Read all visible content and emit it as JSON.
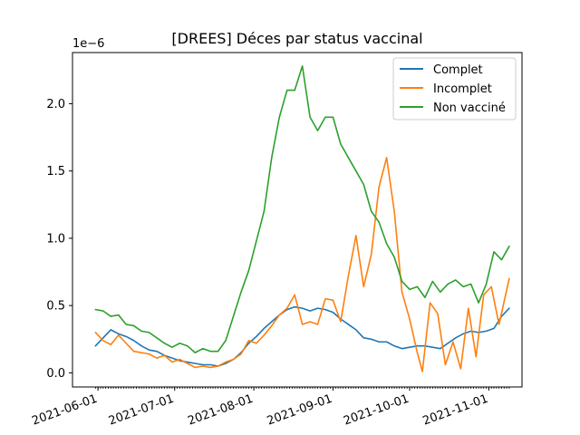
{
  "chart_data": {
    "type": "line",
    "title": "[DREES] Déces par status vaccinal",
    "xlabel": "",
    "ylabel": "",
    "y_offset_label": "1e−6",
    "ylim": [
      -1.05e-07,
      2.38e-06
    ],
    "xlim": [
      "2021-05-22",
      "2021-11-14"
    ],
    "yticks": [
      0.0,
      5e-07,
      1e-06,
      1.5e-06,
      2e-06
    ],
    "ytick_labels": [
      "0.0",
      "0.5",
      "1.0",
      "1.5",
      "2.0"
    ],
    "xticks": [
      "2021-06-01",
      "2021-07-01",
      "2021-08-01",
      "2021-09-01",
      "2021-10-01",
      "2021-11-01"
    ],
    "xtick_labels": [
      "2021-06-01",
      "2021-07-01",
      "2021-08-01",
      "2021-09-01",
      "2021-10-01",
      "2021-11-01"
    ],
    "grid": false,
    "legend_position": "top-right",
    "series": [
      {
        "name": "Complet",
        "color": "#1f77b4",
        "points": [
          [
            "2021-05-31",
            2e-07
          ],
          [
            "2021-06-03",
            2.6e-07
          ],
          [
            "2021-06-06",
            3.2e-07
          ],
          [
            "2021-06-09",
            2.9e-07
          ],
          [
            "2021-06-12",
            2.7e-07
          ],
          [
            "2021-06-15",
            2.4e-07
          ],
          [
            "2021-06-18",
            2e-07
          ],
          [
            "2021-06-21",
            1.7e-07
          ],
          [
            "2021-06-24",
            1.6e-07
          ],
          [
            "2021-06-27",
            1.3e-07
          ],
          [
            "2021-06-30",
            1.1e-07
          ],
          [
            "2021-07-03",
            9e-08
          ],
          [
            "2021-07-06",
            8e-08
          ],
          [
            "2021-07-09",
            7e-08
          ],
          [
            "2021-07-12",
            6e-08
          ],
          [
            "2021-07-15",
            6e-08
          ],
          [
            "2021-07-18",
            5e-08
          ],
          [
            "2021-07-21",
            7e-08
          ],
          [
            "2021-07-24",
            1e-07
          ],
          [
            "2021-07-27",
            1.5e-07
          ],
          [
            "2021-07-30",
            2.2e-07
          ],
          [
            "2021-08-02",
            2.7e-07
          ],
          [
            "2021-08-05",
            3.3e-07
          ],
          [
            "2021-08-08",
            3.8e-07
          ],
          [
            "2021-08-11",
            4.3e-07
          ],
          [
            "2021-08-14",
            4.7e-07
          ],
          [
            "2021-08-17",
            4.9e-07
          ],
          [
            "2021-08-20",
            4.8e-07
          ],
          [
            "2021-08-23",
            4.6e-07
          ],
          [
            "2021-08-26",
            4.8e-07
          ],
          [
            "2021-08-29",
            4.7e-07
          ],
          [
            "2021-09-01",
            4.5e-07
          ],
          [
            "2021-09-04",
            4e-07
          ],
          [
            "2021-09-07",
            3.6e-07
          ],
          [
            "2021-09-10",
            3.2e-07
          ],
          [
            "2021-09-13",
            2.6e-07
          ],
          [
            "2021-09-16",
            2.5e-07
          ],
          [
            "2021-09-19",
            2.3e-07
          ],
          [
            "2021-09-22",
            2.3e-07
          ],
          [
            "2021-09-25",
            2e-07
          ],
          [
            "2021-09-28",
            1.8e-07
          ],
          [
            "2021-10-01",
            1.9e-07
          ],
          [
            "2021-10-04",
            2e-07
          ],
          [
            "2021-10-07",
            2e-07
          ],
          [
            "2021-10-10",
            1.9e-07
          ],
          [
            "2021-10-13",
            1.8e-07
          ],
          [
            "2021-10-16",
            2.2e-07
          ],
          [
            "2021-10-19",
            2.6e-07
          ],
          [
            "2021-10-22",
            2.9e-07
          ],
          [
            "2021-10-25",
            3.1e-07
          ],
          [
            "2021-10-28",
            3e-07
          ],
          [
            "2021-10-31",
            3.1e-07
          ],
          [
            "2021-11-03",
            3.3e-07
          ],
          [
            "2021-11-06",
            4.2e-07
          ],
          [
            "2021-11-09",
            4.8e-07
          ]
        ]
      },
      {
        "name": "Incomplet",
        "color": "#ff7f0e",
        "points": [
          [
            "2021-05-31",
            3e-07
          ],
          [
            "2021-06-03",
            2.4e-07
          ],
          [
            "2021-06-06",
            2.1e-07
          ],
          [
            "2021-06-09",
            2.8e-07
          ],
          [
            "2021-06-12",
            2.2e-07
          ],
          [
            "2021-06-15",
            1.6e-07
          ],
          [
            "2021-06-18",
            1.5e-07
          ],
          [
            "2021-06-21",
            1.4e-07
          ],
          [
            "2021-06-24",
            1.1e-07
          ],
          [
            "2021-06-27",
            1.3e-07
          ],
          [
            "2021-06-30",
            8e-08
          ],
          [
            "2021-07-03",
            1e-07
          ],
          [
            "2021-07-06",
            7e-08
          ],
          [
            "2021-07-09",
            4e-08
          ],
          [
            "2021-07-12",
            5e-08
          ],
          [
            "2021-07-15",
            4e-08
          ],
          [
            "2021-07-18",
            5e-08
          ],
          [
            "2021-07-21",
            8e-08
          ],
          [
            "2021-07-24",
            1e-07
          ],
          [
            "2021-07-27",
            1.4e-07
          ],
          [
            "2021-07-30",
            2.4e-07
          ],
          [
            "2021-08-02",
            2.2e-07
          ],
          [
            "2021-08-05",
            2.8e-07
          ],
          [
            "2021-08-08",
            3.5e-07
          ],
          [
            "2021-08-11",
            4.3e-07
          ],
          [
            "2021-08-14",
            4.8e-07
          ],
          [
            "2021-08-17",
            5.8e-07
          ],
          [
            "2021-08-20",
            3.6e-07
          ],
          [
            "2021-08-23",
            3.8e-07
          ],
          [
            "2021-08-26",
            3.6e-07
          ],
          [
            "2021-08-29",
            5.5e-07
          ],
          [
            "2021-09-01",
            5.4e-07
          ],
          [
            "2021-09-04",
            3.8e-07
          ],
          [
            "2021-09-07",
            7.2e-07
          ],
          [
            "2021-09-10",
            1.02e-06
          ],
          [
            "2021-09-13",
            6.4e-07
          ],
          [
            "2021-09-16",
            8.8e-07
          ],
          [
            "2021-09-19",
            1.38e-06
          ],
          [
            "2021-09-22",
            1.6e-06
          ],
          [
            "2021-09-25",
            1.2e-06
          ],
          [
            "2021-09-28",
            6e-07
          ],
          [
            "2021-10-01",
            4e-07
          ],
          [
            "2021-10-04",
            1.5e-07
          ],
          [
            "2021-10-06",
            1e-08
          ],
          [
            "2021-10-09",
            5.2e-07
          ],
          [
            "2021-10-12",
            4.4e-07
          ],
          [
            "2021-10-15",
            6e-08
          ],
          [
            "2021-10-18",
            2.3e-07
          ],
          [
            "2021-10-21",
            3e-08
          ],
          [
            "2021-10-24",
            4.8e-07
          ],
          [
            "2021-10-27",
            1.2e-07
          ],
          [
            "2021-10-30",
            5.8e-07
          ],
          [
            "2021-11-02",
            6.4e-07
          ],
          [
            "2021-11-05",
            3.6e-07
          ],
          [
            "2021-11-09",
            7e-07
          ]
        ]
      },
      {
        "name": "Non vacciné",
        "color": "#2ca02c",
        "points": [
          [
            "2021-05-31",
            4.7e-07
          ],
          [
            "2021-06-03",
            4.6e-07
          ],
          [
            "2021-06-06",
            4.2e-07
          ],
          [
            "2021-06-09",
            4.3e-07
          ],
          [
            "2021-06-12",
            3.6e-07
          ],
          [
            "2021-06-15",
            3.5e-07
          ],
          [
            "2021-06-18",
            3.1e-07
          ],
          [
            "2021-06-21",
            3e-07
          ],
          [
            "2021-06-24",
            2.6e-07
          ],
          [
            "2021-06-27",
            2.2e-07
          ],
          [
            "2021-06-30",
            1.9e-07
          ],
          [
            "2021-07-03",
            2.2e-07
          ],
          [
            "2021-07-06",
            2e-07
          ],
          [
            "2021-07-09",
            1.5e-07
          ],
          [
            "2021-07-12",
            1.8e-07
          ],
          [
            "2021-07-15",
            1.6e-07
          ],
          [
            "2021-07-18",
            1.6e-07
          ],
          [
            "2021-07-21",
            2.4e-07
          ],
          [
            "2021-07-24",
            4.2e-07
          ],
          [
            "2021-07-27",
            6e-07
          ],
          [
            "2021-07-30",
            7.6e-07
          ],
          [
            "2021-08-02",
            9.8e-07
          ],
          [
            "2021-08-05",
            1.2e-06
          ],
          [
            "2021-08-08",
            1.6e-06
          ],
          [
            "2021-08-11",
            1.9e-06
          ],
          [
            "2021-08-14",
            2.1e-06
          ],
          [
            "2021-08-17",
            2.1e-06
          ],
          [
            "2021-08-20",
            2.28e-06
          ],
          [
            "2021-08-23",
            1.9e-06
          ],
          [
            "2021-08-26",
            1.8e-06
          ],
          [
            "2021-08-29",
            1.9e-06
          ],
          [
            "2021-09-01",
            1.9e-06
          ],
          [
            "2021-09-04",
            1.7e-06
          ],
          [
            "2021-09-07",
            1.6e-06
          ],
          [
            "2021-09-10",
            1.5e-06
          ],
          [
            "2021-09-13",
            1.4e-06
          ],
          [
            "2021-09-16",
            1.2e-06
          ],
          [
            "2021-09-19",
            1.12e-06
          ],
          [
            "2021-09-22",
            9.6e-07
          ],
          [
            "2021-09-25",
            8.6e-07
          ],
          [
            "2021-09-28",
            6.8e-07
          ],
          [
            "2021-10-01",
            6.2e-07
          ],
          [
            "2021-10-04",
            6.4e-07
          ],
          [
            "2021-10-07",
            5.6e-07
          ],
          [
            "2021-10-10",
            6.8e-07
          ],
          [
            "2021-10-13",
            6e-07
          ],
          [
            "2021-10-16",
            6.6e-07
          ],
          [
            "2021-10-19",
            6.9e-07
          ],
          [
            "2021-10-22",
            6.4e-07
          ],
          [
            "2021-10-25",
            6.6e-07
          ],
          [
            "2021-10-28",
            5.2e-07
          ],
          [
            "2021-10-31",
            6.6e-07
          ],
          [
            "2021-11-03",
            9e-07
          ],
          [
            "2021-11-06",
            8.4e-07
          ],
          [
            "2021-11-09",
            9.4e-07
          ]
        ]
      }
    ]
  }
}
